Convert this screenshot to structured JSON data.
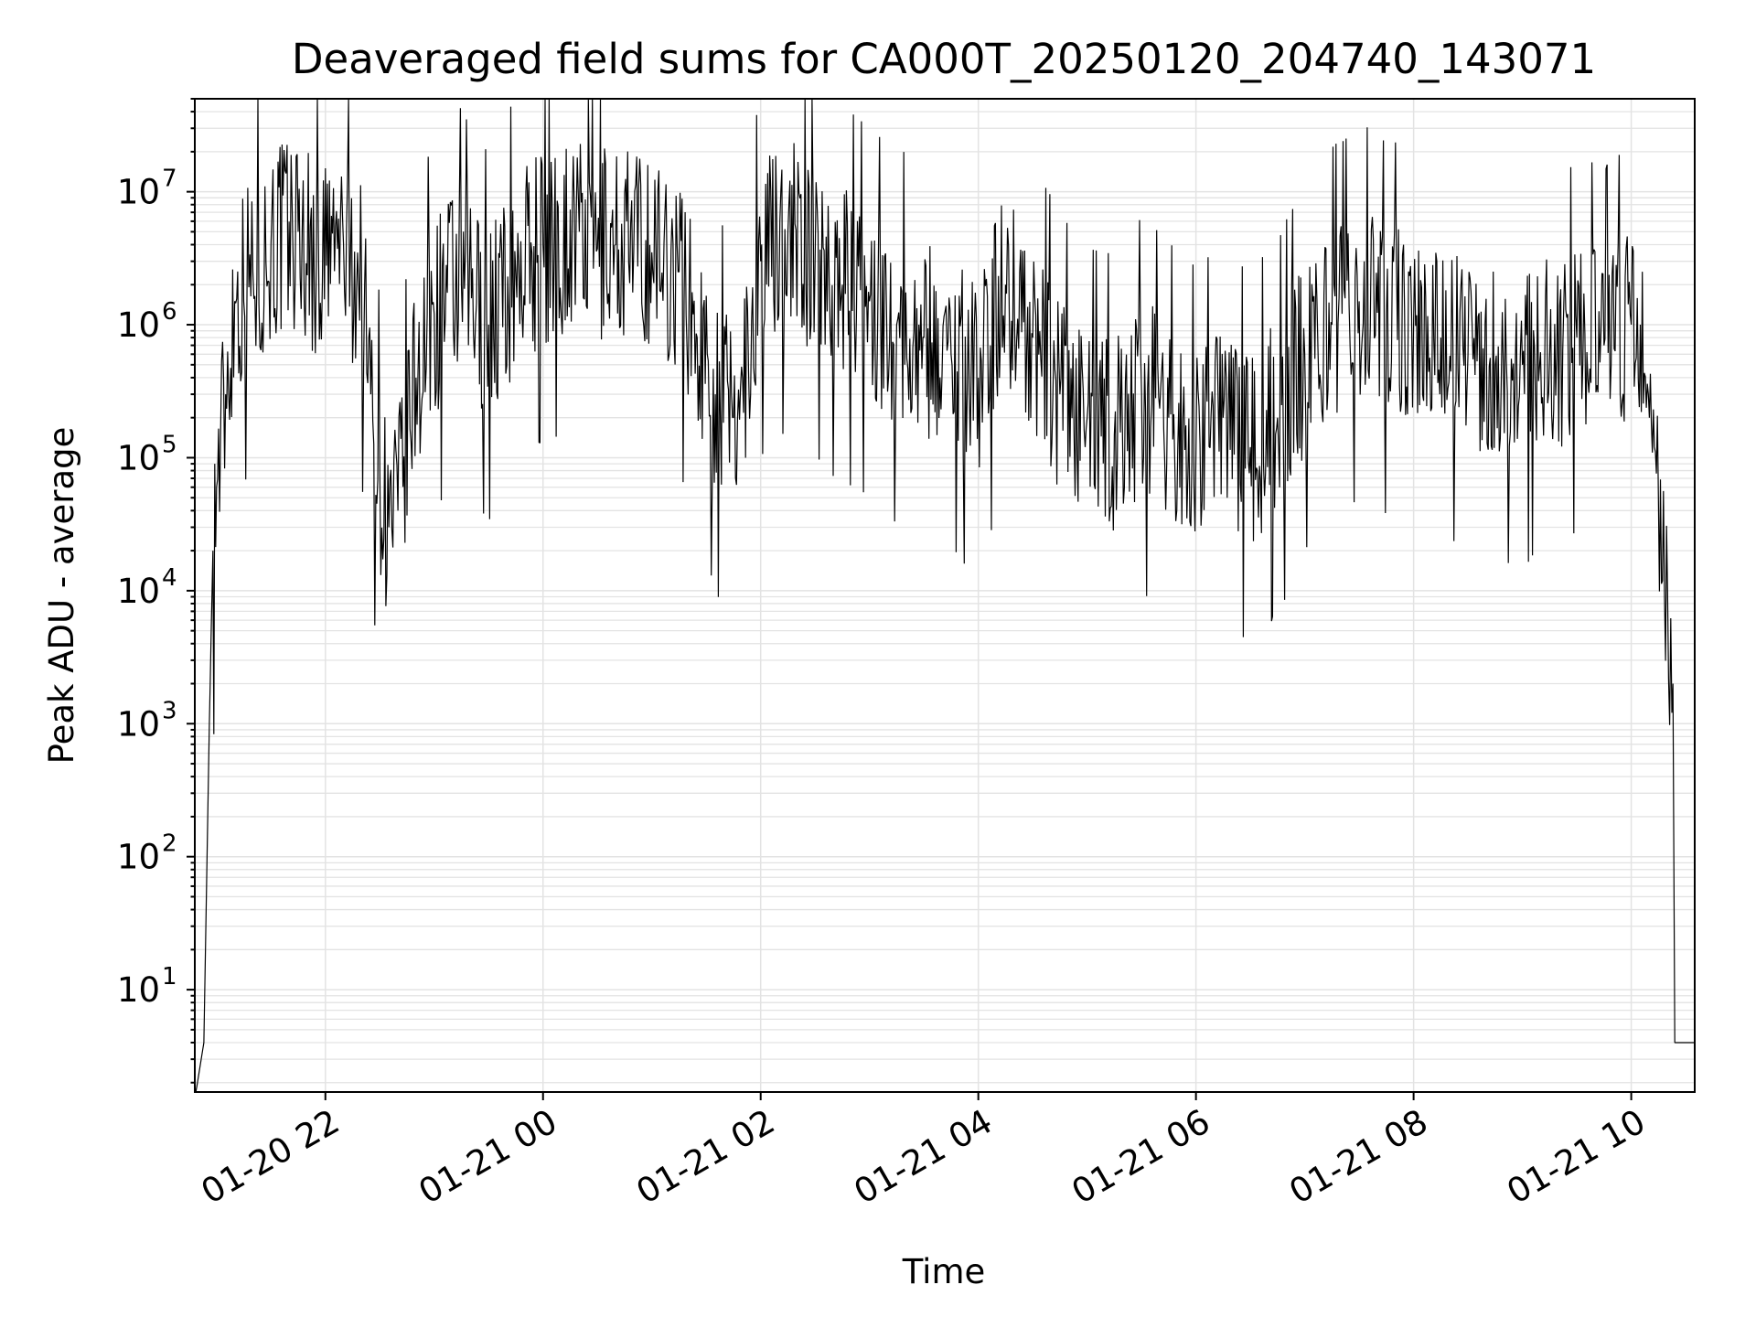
{
  "chart_data": {
    "type": "line",
    "title": "Deaveraged field sums for CA000T_20250120_204740_143071",
    "xlabel": "Time",
    "ylabel": "Peak ADU - average",
    "yscale": "log",
    "ylim": [
      1.7,
      50000000
    ],
    "xlim": [
      "2025-01-20T20:48",
      "2025-01-21T10:35"
    ],
    "grid": true,
    "x_tick_labels": [
      "01-20 22",
      "01-21 00",
      "01-21 02",
      "01-21 04",
      "01-21 06",
      "01-21 08",
      "01-21 10"
    ],
    "x_ticks": [
      "2025-01-20T22:00",
      "2025-01-21T00:00",
      "2025-01-21T02:00",
      "2025-01-21T04:00",
      "2025-01-21T06:00",
      "2025-01-21T08:00",
      "2025-01-21T10:00"
    ],
    "y_ticks": [
      {
        "base": "10",
        "exp": "1",
        "value": 10
      },
      {
        "base": "10",
        "exp": "2",
        "value": 100
      },
      {
        "base": "10",
        "exp": "3",
        "value": 1000
      },
      {
        "base": "10",
        "exp": "4",
        "value": 10000
      },
      {
        "base": "10",
        "exp": "5",
        "value": 100000
      },
      {
        "base": "10",
        "exp": "6",
        "value": 1000000
      },
      {
        "base": "10",
        "exp": "7",
        "value": 10000000
      }
    ],
    "series": [
      {
        "color": "#000000",
        "points": [
          [
            "2025-01-20T20:48",
            1.5
          ],
          [
            "2025-01-20T20:53",
            4
          ],
          [
            "2025-01-20T20:56",
            1000
          ],
          [
            "2025-01-20T20:58",
            20000
          ],
          [
            "2025-01-20T21:00",
            60000
          ],
          [
            "2025-01-20T21:05",
            300000
          ],
          [
            "2025-01-20T21:10",
            1500000
          ],
          [
            "2025-01-20T21:20",
            2500000
          ],
          [
            "2025-01-20T21:30",
            4000000
          ],
          [
            "2025-01-20T21:45",
            5000000
          ],
          [
            "2025-01-20T21:55",
            3000000
          ],
          [
            "2025-01-20T22:10",
            4000000
          ],
          [
            "2025-01-20T22:20",
            2000000
          ],
          [
            "2025-01-20T22:25",
            300000
          ],
          [
            "2025-01-20T22:30",
            80000
          ],
          [
            "2025-01-20T22:35",
            30000
          ],
          [
            "2025-01-20T22:40",
            40000
          ],
          [
            "2025-01-20T22:50",
            400000
          ],
          [
            "2025-01-20T23:00",
            1200000
          ],
          [
            "2025-01-20T23:15",
            2000000
          ],
          [
            "2025-01-20T23:30",
            1000000
          ],
          [
            "2025-01-20T23:45",
            2500000
          ],
          [
            "2025-01-21T00:00",
            4000000
          ],
          [
            "2025-01-21T00:20",
            5000000
          ],
          [
            "2025-01-21T00:40",
            4000000
          ],
          [
            "2025-01-21T01:00",
            3500000
          ],
          [
            "2025-01-21T01:15",
            2500000
          ],
          [
            "2025-01-21T01:25",
            800000
          ],
          [
            "2025-01-21T01:35",
            300000
          ],
          [
            "2025-01-21T01:45",
            200000
          ],
          [
            "2025-01-21T01:50",
            400000
          ],
          [
            "2025-01-21T02:00",
            3000000
          ],
          [
            "2025-01-21T02:15",
            5000000
          ],
          [
            "2025-01-21T02:30",
            3000000
          ],
          [
            "2025-01-21T02:45",
            2000000
          ],
          [
            "2025-01-21T03:00",
            1500000
          ],
          [
            "2025-01-21T03:15",
            1000000
          ],
          [
            "2025-01-21T03:30",
            800000
          ],
          [
            "2025-01-21T03:45",
            600000
          ],
          [
            "2025-01-21T04:00",
            400000
          ],
          [
            "2025-01-21T04:15",
            2000000
          ],
          [
            "2025-01-21T04:30",
            800000
          ],
          [
            "2025-01-21T04:45",
            300000
          ],
          [
            "2025-01-21T05:00",
            200000
          ],
          [
            "2025-01-21T05:15",
            150000
          ],
          [
            "2025-01-21T05:30",
            300000
          ],
          [
            "2025-01-21T05:45",
            200000
          ],
          [
            "2025-01-21T06:00",
            120000
          ],
          [
            "2025-01-21T06:15",
            200000
          ],
          [
            "2025-01-21T06:30",
            120000
          ],
          [
            "2025-01-21T06:45",
            200000
          ],
          [
            "2025-01-21T07:00",
            600000
          ],
          [
            "2025-01-21T07:15",
            1000000
          ],
          [
            "2025-01-21T07:30",
            1500000
          ],
          [
            "2025-01-21T07:45",
            1200000
          ],
          [
            "2025-01-21T08:00",
            1000000
          ],
          [
            "2025-01-21T08:15",
            800000
          ],
          [
            "2025-01-21T08:30",
            600000
          ],
          [
            "2025-01-21T08:45",
            500000
          ],
          [
            "2025-01-21T09:00",
            500000
          ],
          [
            "2025-01-21T09:15",
            600000
          ],
          [
            "2025-01-21T09:30",
            800000
          ],
          [
            "2025-01-21T09:45",
            700000
          ],
          [
            "2025-01-21T10:00",
            1000000
          ],
          [
            "2025-01-21T10:05",
            1000000
          ],
          [
            "2025-01-21T10:10",
            200000
          ],
          [
            "2025-01-21T10:15",
            50000
          ],
          [
            "2025-01-21T10:20",
            10000
          ],
          [
            "2025-01-21T10:23",
            2000
          ],
          [
            "2025-01-21T10:24",
            4
          ],
          [
            "2025-01-21T10:35",
            4
          ]
        ]
      }
    ]
  }
}
